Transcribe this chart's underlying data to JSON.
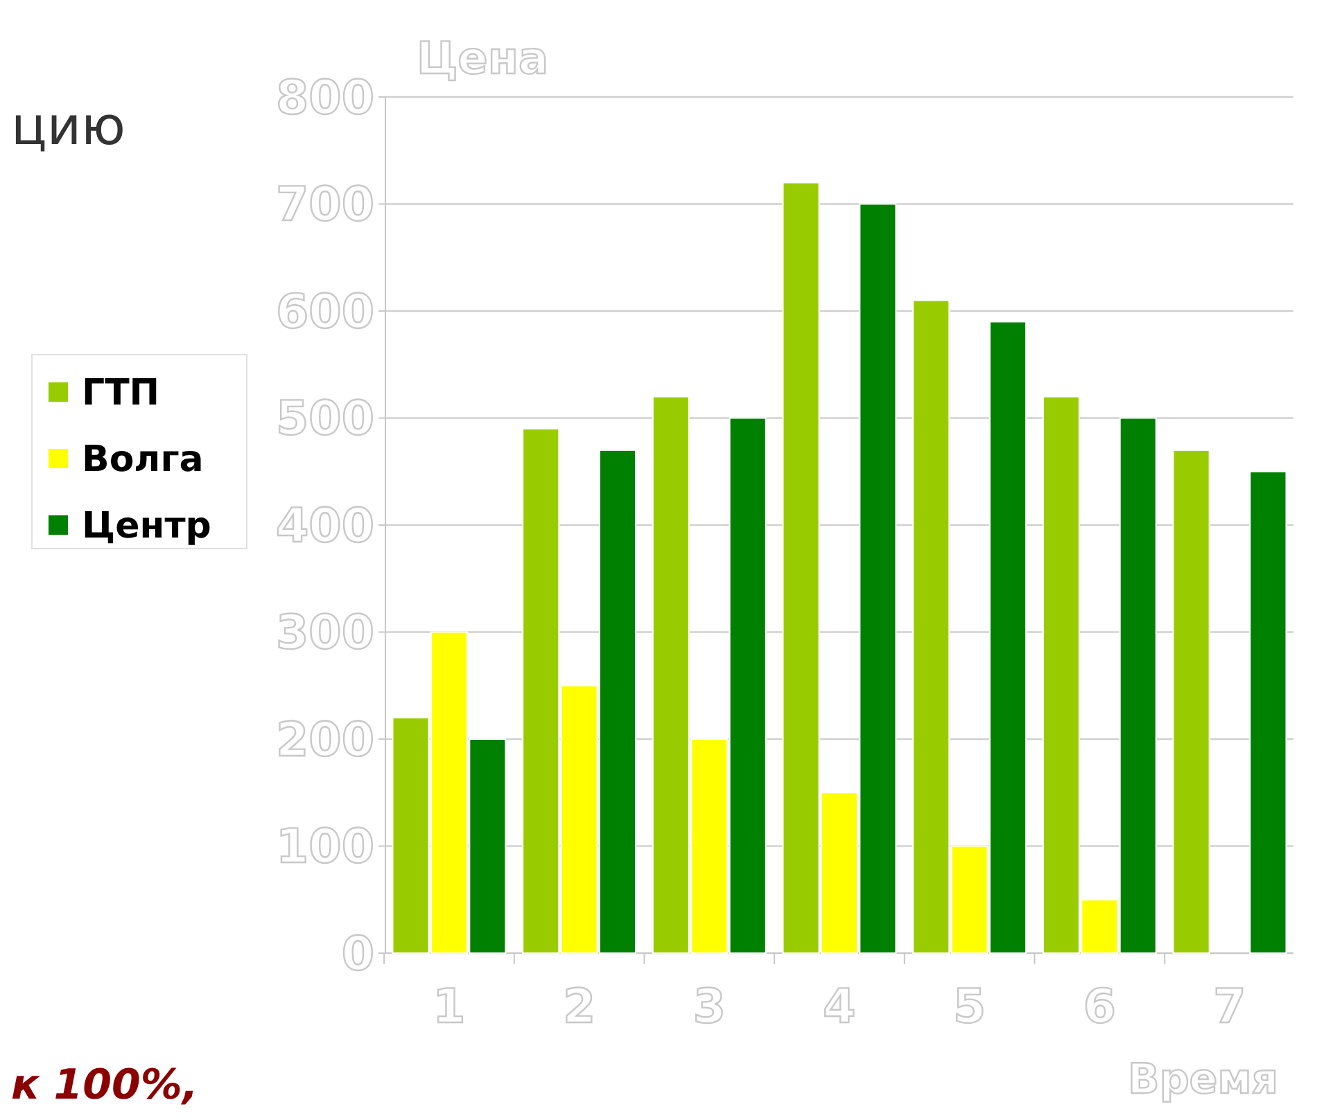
{
  "chart_data": {
    "type": "bar",
    "ylabel": "Цена",
    "xlabel": "Время",
    "categories": [
      "1",
      "2",
      "3",
      "4",
      "5",
      "6",
      "7"
    ],
    "series": [
      {
        "name": "ГТП",
        "color": "#99cc00",
        "values": [
          220,
          490,
          520,
          720,
          610,
          520,
          470
        ]
      },
      {
        "name": "Волга",
        "color": "#ffff00",
        "values": [
          300,
          250,
          200,
          150,
          100,
          50,
          0
        ]
      },
      {
        "name": "Центр",
        "color": "#008000",
        "values": [
          200,
          470,
          500,
          700,
          590,
          500,
          450
        ]
      }
    ],
    "ylim": [
      0,
      800
    ],
    "yticks": [
      0,
      100,
      200,
      300,
      400,
      500,
      600,
      700,
      800
    ],
    "grid": "y",
    "legend": "left",
    "annotations": [
      "цию",
      "к 100%,"
    ]
  }
}
